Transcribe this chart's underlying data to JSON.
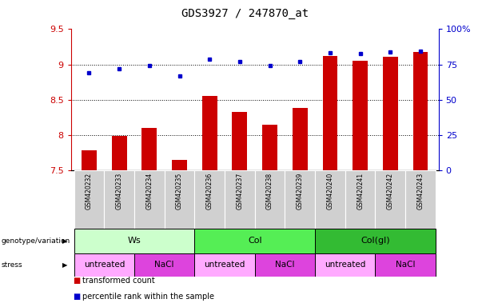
{
  "title": "GDS3927 / 247870_at",
  "samples": [
    "GSM420232",
    "GSM420233",
    "GSM420234",
    "GSM420235",
    "GSM420236",
    "GSM420237",
    "GSM420238",
    "GSM420239",
    "GSM420240",
    "GSM420241",
    "GSM420242",
    "GSM420243"
  ],
  "bar_values": [
    7.78,
    7.99,
    8.1,
    7.65,
    8.55,
    8.33,
    8.15,
    8.38,
    9.12,
    9.05,
    9.11,
    9.18
  ],
  "dot_values": [
    8.88,
    8.94,
    8.99,
    8.84,
    9.07,
    9.04,
    8.98,
    9.04,
    9.17,
    9.16,
    9.18,
    9.19
  ],
  "bar_color": "#cc0000",
  "dot_color": "#0000cc",
  "bar_baseline": 7.5,
  "ylim_left": [
    7.5,
    9.5
  ],
  "ylim_right": [
    0,
    100
  ],
  "yticks_left": [
    7.5,
    8.0,
    8.5,
    9.0,
    9.5
  ],
  "ytick_labels_left": [
    "7.5",
    "8",
    "8.5",
    "9",
    "9.5"
  ],
  "yticks_right": [
    0,
    25,
    50,
    75,
    100
  ],
  "ytick_labels_right": [
    "0",
    "25",
    "50",
    "75",
    "100%"
  ],
  "grid_values": [
    8.0,
    8.5,
    9.0
  ],
  "genotype_groups": [
    {
      "label": "Ws",
      "start": 0,
      "end": 3,
      "color": "#ccffcc"
    },
    {
      "label": "Col",
      "start": 4,
      "end": 7,
      "color": "#55ee55"
    },
    {
      "label": "Col(gl)",
      "start": 8,
      "end": 11,
      "color": "#33bb33"
    }
  ],
  "stress_groups": [
    {
      "label": "untreated",
      "start": 0,
      "end": 1,
      "color": "#ffaaff"
    },
    {
      "label": "NaCl",
      "start": 2,
      "end": 3,
      "color": "#dd44dd"
    },
    {
      "label": "untreated",
      "start": 4,
      "end": 5,
      "color": "#ffaaff"
    },
    {
      "label": "NaCl",
      "start": 6,
      "end": 7,
      "color": "#dd44dd"
    },
    {
      "label": "untreated",
      "start": 8,
      "end": 9,
      "color": "#ffaaff"
    },
    {
      "label": "NaCl",
      "start": 10,
      "end": 11,
      "color": "#dd44dd"
    }
  ],
  "legend_bar_label": "transformed count",
  "legend_dot_label": "percentile rank within the sample",
  "label_genotype": "genotype/variation",
  "label_stress": "stress",
  "bg_color": "#ffffff",
  "sample_bg_color": "#d0d0d0",
  "bar_width": 0.5
}
